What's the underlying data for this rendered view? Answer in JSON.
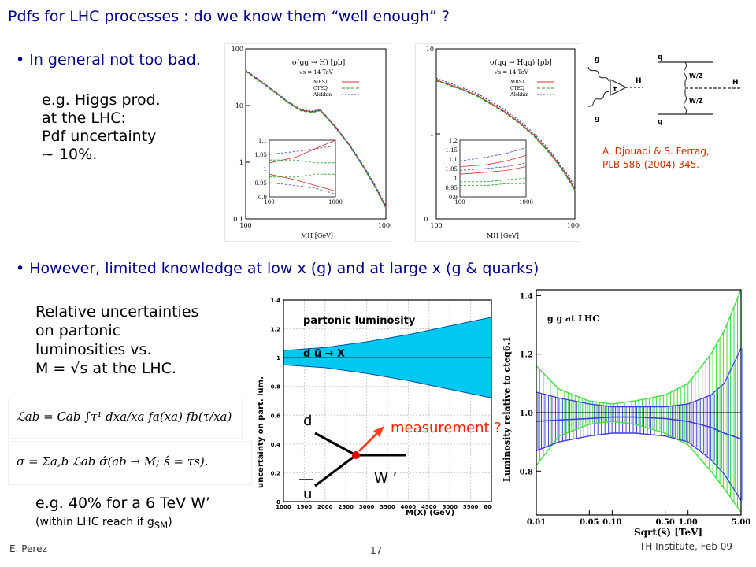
{
  "title": "Pdfs for LHC processes : do we know them “well enough” ?",
  "bullet1": "In general not too bad.",
  "higgs_text": [
    "e.g. Higgs prod.",
    "at the LHC:",
    "Pdf uncertainty",
    "~ 10%."
  ],
  "citation": [
    "A. Djouadi & S. Ferrag,",
    "PLB 586 (2004) 345."
  ],
  "bullet2": "However, limited knowledge at low x (g)  and at large x (g & quarks)",
  "rel_text": [
    "Relative uncertainties",
    "on partonic",
    "luminosities vs.",
    "M = √s at the LHC."
  ],
  "eq1": "ℒab = Cab ∫τ¹ dxa/xa fa(xa) fb(τ/xa)",
  "eq2": "σ = Σa,b ℒab σ̂(ab → M; ŝ = τs).",
  "eg_w": "e.g. 40% for a 6 TeV W’",
  "within": "(within LHC reach if g",
  "within_sub": "SM",
  "within_end": ")",
  "footer_left": "E. Perez",
  "footer_page": "17",
  "footer_right": "TH Institute, Feb 09",
  "diagram": {
    "d": "d",
    "u": "u",
    "wprime": "W ’",
    "measurement": "measurement ?"
  },
  "feyn": {
    "g": "g",
    "t": "t",
    "H": "H",
    "q": "q",
    "WZ": "W/Z"
  },
  "chart_data": [
    {
      "type": "line",
      "title": "σ(gg → H) [pb]",
      "subtitle": "√s = 14 TeV",
      "xlabel": "MH [GeV]",
      "ylabel": "",
      "log_x": true,
      "log_y": true,
      "xlim": [
        100,
        1000
      ],
      "ylim": [
        0.1,
        100
      ],
      "xticks": [
        "100",
        "1000"
      ],
      "yticks": [
        "0.1",
        "1",
        "10",
        "100"
      ],
      "legend": [
        "MRST",
        "CTEQ",
        "Alekhin"
      ],
      "legend_position": "top-right",
      "colors": [
        "#e03030",
        "#20a020",
        "#4040c0"
      ],
      "x": [
        100,
        150,
        200,
        250,
        300,
        340,
        380,
        450,
        550,
        700,
        850,
        1000
      ],
      "series": [
        {
          "name": "MRST",
          "values": [
            41,
            20,
            11.5,
            8.2,
            7.8,
            8.3,
            6.2,
            3.8,
            2.0,
            0.8,
            0.35,
            0.16
          ]
        },
        {
          "name": "CTEQ",
          "values": [
            40,
            19.6,
            11.3,
            8.0,
            7.6,
            8.1,
            6.0,
            3.7,
            1.95,
            0.78,
            0.34,
            0.155
          ]
        },
        {
          "name": "Alekhin",
          "values": [
            42,
            20.5,
            11.8,
            8.4,
            8.0,
            8.5,
            6.4,
            3.9,
            2.05,
            0.83,
            0.37,
            0.17
          ]
        }
      ],
      "inset": {
        "xlim": [
          100,
          1000
        ],
        "ylim": [
          0.9,
          1.1
        ],
        "xticks": [
          "100",
          "1000"
        ],
        "yticks": [
          "0.9",
          "0.95",
          "1",
          "1.05",
          "1.1"
        ]
      }
    },
    {
      "type": "line",
      "title": "σ(qq → Hqq) [pb]",
      "subtitle": "√s = 14 TeV",
      "xlabel": "MH [GeV]",
      "ylabel": "",
      "log_x": true,
      "log_y": true,
      "xlim": [
        100,
        1000
      ],
      "ylim": [
        0.1,
        10
      ],
      "xticks": [
        "100",
        "1000"
      ],
      "yticks": [
        "0.1",
        "1",
        "10"
      ],
      "legend": [
        "MRST",
        "CTEQ",
        "Alekhin"
      ],
      "legend_position": "top-right",
      "colors": [
        "#e03030",
        "#20a020",
        "#4040c0"
      ],
      "x": [
        100,
        150,
        200,
        300,
        400,
        500,
        600,
        700,
        800,
        900,
        1000
      ],
      "series": [
        {
          "name": "MRST",
          "values": [
            4.3,
            3.4,
            2.8,
            1.9,
            1.35,
            0.98,
            0.72,
            0.53,
            0.4,
            0.3,
            0.22
          ]
        },
        {
          "name": "CTEQ",
          "values": [
            4.2,
            3.35,
            2.75,
            1.85,
            1.32,
            0.96,
            0.7,
            0.52,
            0.39,
            0.29,
            0.215
          ]
        },
        {
          "name": "Alekhin",
          "values": [
            4.5,
            3.55,
            2.95,
            2.0,
            1.42,
            1.03,
            0.76,
            0.56,
            0.42,
            0.32,
            0.235
          ]
        }
      ],
      "inset": {
        "xlim": [
          100,
          1000
        ],
        "ylim": [
          0.9,
          1.2
        ],
        "xticks": [
          "100",
          "1000"
        ],
        "yticks": [
          "0.9",
          "0.95",
          "1",
          "1.05",
          "1.1",
          "1.15",
          "1.2"
        ]
      }
    },
    {
      "type": "area",
      "title": "partonic luminosity",
      "subtitle": "d ū → X",
      "xlabel": "M(X) (GeV)",
      "ylabel": "uncertainty on part. lum.",
      "xlim": [
        1000,
        6000
      ],
      "ylim": [
        0,
        1.4
      ],
      "xticks": [
        "1000",
        "1500",
        "2000",
        "2500",
        "3000",
        "3500",
        "4000",
        "4500",
        "5000",
        "5500",
        "6000"
      ],
      "yticks": [
        "0",
        "0.2",
        "0.4",
        "0.6",
        "0.8",
        "1",
        "1.2",
        "1.4"
      ],
      "x": [
        1000,
        2000,
        3000,
        4000,
        5000,
        6000
      ],
      "upper": [
        1.05,
        1.07,
        1.11,
        1.16,
        1.22,
        1.28
      ],
      "lower": [
        0.95,
        0.93,
        0.89,
        0.84,
        0.78,
        0.72
      ],
      "grid": true
    },
    {
      "type": "area",
      "title": "g g   at LHC",
      "xlabel": "Sqrt(ŝ) [TeV]",
      "ylabel": "Luminosity relative to cteq6.1",
      "log_x": true,
      "xlim": [
        0.01,
        5.0
      ],
      "ylim": [
        0.65,
        1.42
      ],
      "xticks": [
        "0.01",
        "0.05",
        "0.10",
        "0.50",
        "1.00",
        "5.00"
      ],
      "yticks": [
        "0.8",
        "1.0",
        "1.2",
        "1.4"
      ],
      "x": [
        0.01,
        0.02,
        0.05,
        0.1,
        0.2,
        0.5,
        1.0,
        2.0,
        3.0,
        5.0
      ],
      "series": [
        {
          "name": "green band upper",
          "values": [
            1.16,
            1.08,
            1.04,
            1.03,
            1.04,
            1.06,
            1.1,
            1.2,
            1.28,
            1.42
          ]
        },
        {
          "name": "green band lower",
          "values": [
            0.82,
            0.92,
            0.96,
            0.97,
            0.96,
            0.93,
            0.89,
            0.8,
            0.74,
            0.66
          ]
        },
        {
          "name": "blue band upper",
          "values": [
            1.07,
            1.05,
            1.03,
            1.02,
            1.02,
            1.02,
            1.03,
            1.06,
            1.1,
            1.22
          ]
        },
        {
          "name": "blue band lower",
          "values": [
            0.87,
            0.9,
            0.92,
            0.93,
            0.93,
            0.92,
            0.9,
            0.84,
            0.79,
            0.7
          ]
        },
        {
          "name": "blue central",
          "values": [
            0.97,
            0.975,
            0.98,
            0.985,
            0.985,
            0.98,
            0.97,
            0.95,
            0.93,
            0.91
          ]
        }
      ],
      "colors": [
        "#40e040",
        "#4040e0"
      ]
    }
  ]
}
